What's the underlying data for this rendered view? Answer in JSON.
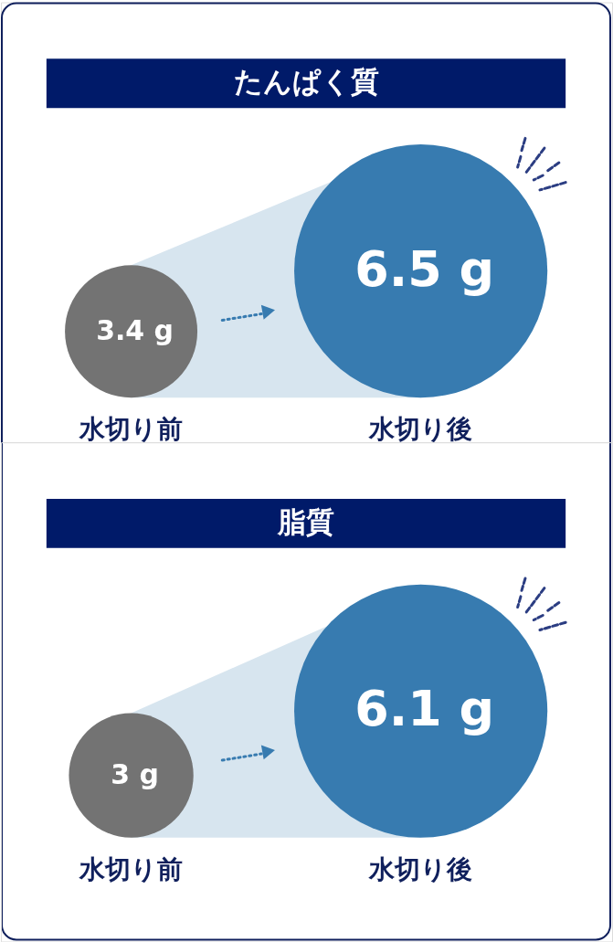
{
  "chart_data": [
    {
      "type": "other",
      "title": "たんぱく質",
      "categories": [
        "水切り前",
        "水切り後"
      ],
      "values": [
        3.4,
        6.5
      ],
      "value_labels": [
        "3.4 g",
        "6.5 g"
      ],
      "colors": [
        "#737373",
        "#377bb0"
      ]
    },
    {
      "type": "other",
      "title": "脂質",
      "categories": [
        "水切り前",
        "水切り後"
      ],
      "values": [
        3,
        6.1
      ],
      "value_labels": [
        "3 g",
        "6.1 g"
      ],
      "colors": [
        "#737373",
        "#377bb0"
      ]
    }
  ]
}
